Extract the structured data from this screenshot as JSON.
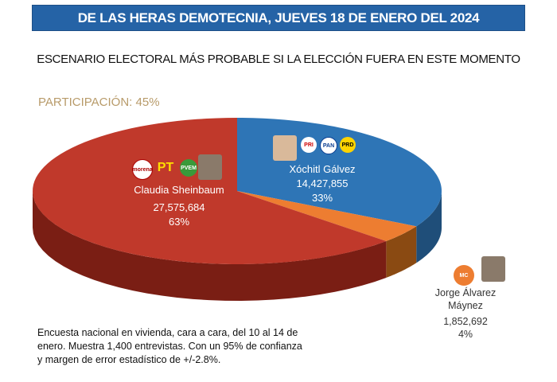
{
  "header": {
    "banner": "DE LAS HERAS DEMOTECNIA, JUEVES 18 DE ENERO DEL 2024",
    "subtitle": "ESCENARIO ELECTORAL MÁS PROBABLE SI LA ELECCIÓN FUERA EN ESTE MOMENTO",
    "participation": "PARTICIPACIÓN: 45%"
  },
  "chart_data": {
    "type": "pie",
    "title": "ESCENARIO ELECTORAL MÁS PROBABLE SI LA ELECCIÓN FUERA EN ESTE MOMENTO",
    "style": "3d",
    "slices": [
      {
        "name": "Xóchitl Gálvez",
        "votes": "14,427,855",
        "percent_label": "33%",
        "value": 33,
        "color": "#2e75b6",
        "side_color": "#1f4e79"
      },
      {
        "name": "Jorge Álvarez Máynez",
        "votes": "1,852,692",
        "percent_label": "4%",
        "value": 4,
        "color": "#ed7d31",
        "side_color": "#8a4a12"
      },
      {
        "name": "Claudia Sheinbaum",
        "votes": "27,575,684",
        "percent_label": "63%",
        "value": 63,
        "color": "#c0392b",
        "side_color": "#7a1e14"
      }
    ],
    "logos": {
      "sheinbaum": [
        "morena",
        "PT",
        "PVEM"
      ],
      "galvez": [
        "PRI",
        "PAN",
        "PRD"
      ],
      "maynez": [
        "MC"
      ]
    }
  },
  "note": "Encuesta nacional en vivienda, cara a cara, del 10 al 14 de enero. Muestra 1,400 entrevistas. Con un 95% de confianza y margen de error estadístico de +/-2.8%."
}
